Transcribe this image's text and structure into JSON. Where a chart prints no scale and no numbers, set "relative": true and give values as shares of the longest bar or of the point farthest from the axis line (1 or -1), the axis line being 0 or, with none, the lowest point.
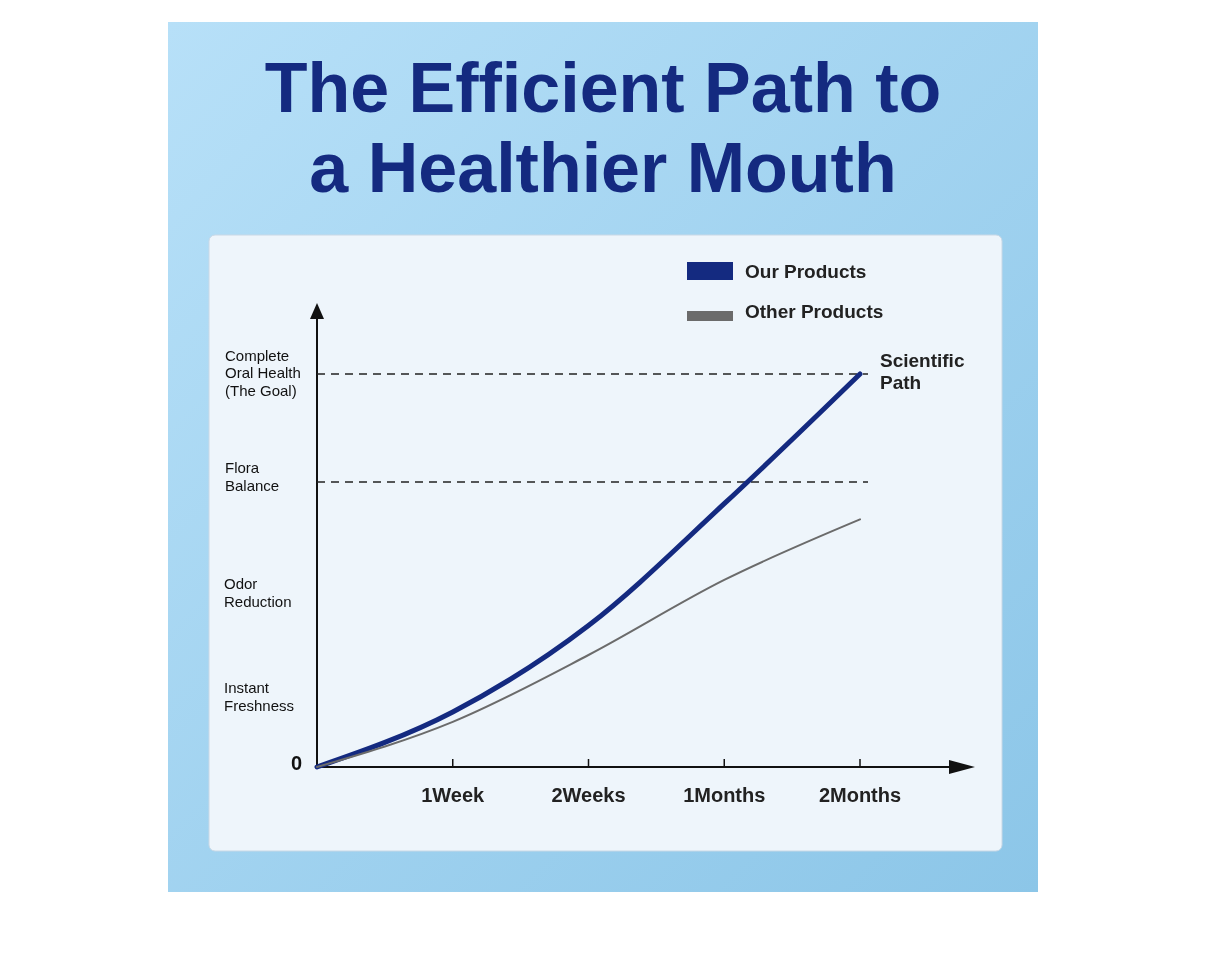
{
  "chart_data": {
    "type": "line",
    "title": "The Efficient Path to a Healthier Mouth",
    "relative": true,
    "categories": [
      null,
      "1Week",
      "2Weeks",
      "1Months",
      "2Months"
    ],
    "series": [
      {
        "name": "Our Products",
        "color": "#142a80",
        "values": [
          0,
          0.14,
          0.36,
          0.67,
          1
        ]
      },
      {
        "name": "Other Products",
        "color": "#6b6b6b",
        "values": [
          0,
          0.115,
          0.285,
          0.476,
          0.63
        ]
      }
    ],
    "ref_lines": [
      {
        "axis": "y",
        "value": 1,
        "label": "Complete Oral Health (The Goal)",
        "line_style": "dashed",
        "color": "#222222"
      },
      {
        "axis": "y",
        "value": 0.725,
        "label": "Flora Balance",
        "line_style": "dashed",
        "color": "#222222"
      }
    ],
    "annotations": [
      "0",
      "Instant Freshness",
      "Odor Reduction",
      {
        "text": "Scientific Path",
        "x": "2Months",
        "y": 1
      }
    ],
    "legend": "top right",
    "marker": "none",
    "line_style": "solid"
  }
}
